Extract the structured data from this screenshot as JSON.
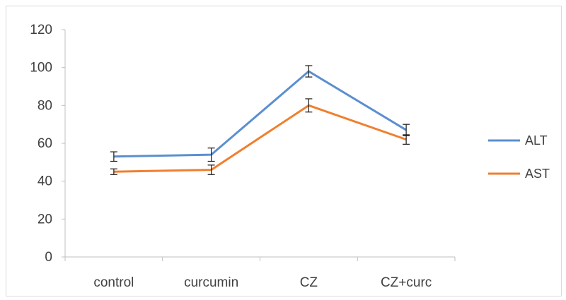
{
  "chart_data": {
    "type": "line",
    "categories": [
      "control",
      "curcumin",
      "CZ",
      "CZ+curc"
    ],
    "series": [
      {
        "name": "ALT",
        "values": [
          53,
          54,
          98,
          67
        ],
        "errors": [
          2.5,
          3.5,
          3.0,
          3.0
        ],
        "color": "#5b8fd0"
      },
      {
        "name": "AST",
        "values": [
          45,
          46,
          80,
          62
        ],
        "errors": [
          1.5,
          2.5,
          3.5,
          2.5
        ],
        "color": "#f07f2f"
      }
    ],
    "y_ticks": [
      "0",
      "20",
      "40",
      "60",
      "80",
      "100",
      "120"
    ],
    "ylim": [
      0,
      120
    ],
    "grid": false,
    "legend_position": "right"
  }
}
